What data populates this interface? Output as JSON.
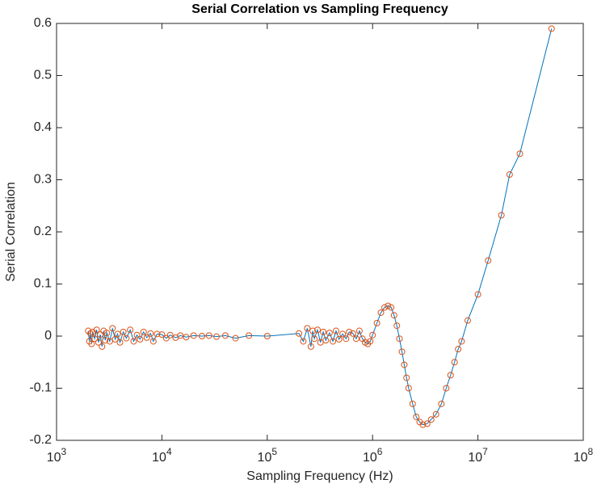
{
  "chart_data": {
    "type": "line",
    "title": "Serial Correlation vs Sampling Frequency",
    "x_label": "Sampling Frequency (Hz)",
    "y_label": "Serial Correlation",
    "x_scale": "log",
    "line_color": "#0072bd",
    "marker_color": "#d95319",
    "marker": "circle",
    "xlim": [
      1000,
      100000000
    ],
    "ylim": [
      -0.2,
      0.6
    ],
    "xticks": [
      {
        "value": 1000,
        "label": "10",
        "exponent": "3"
      },
      {
        "value": 10000,
        "label": "10",
        "exponent": "4"
      },
      {
        "value": 100000,
        "label": "10",
        "exponent": "5"
      },
      {
        "value": 1000000,
        "label": "10",
        "exponent": "6"
      },
      {
        "value": 10000000,
        "label": "10",
        "exponent": "7"
      },
      {
        "value": 100000000,
        "label": "10",
        "exponent": "8"
      }
    ],
    "yticks": [
      -0.2,
      -0.1,
      0,
      0.1,
      0.2,
      0.3,
      0.4,
      0.5,
      0.6
    ],
    "x": [
      2000,
      2050,
      2100,
      2150,
      2200,
      2300,
      2400,
      2500,
      2600,
      2700,
      2800,
      2900,
      3000,
      3200,
      3400,
      3600,
      3800,
      4000,
      4300,
      4600,
      5000,
      5400,
      5800,
      6200,
      6700,
      7200,
      7800,
      8300,
      9000,
      10000,
      11000,
      12000,
      13500,
      15000,
      17000,
      20000,
      24000,
      28000,
      33000,
      40000,
      50000,
      67000,
      100000,
      200000,
      220000,
      240000,
      260000,
      270000,
      280000,
      300000,
      320000,
      340000,
      360000,
      390000,
      420000,
      450000,
      480000,
      520000,
      560000,
      600000,
      650000,
      700000,
      750000,
      800000,
      850000,
      900000,
      950000,
      1000000,
      1100000,
      1200000,
      1300000,
      1400000,
      1500000,
      1600000,
      1700000,
      1800000,
      1900000,
      2000000,
      2100000,
      2200000,
      2400000,
      2600000,
      2800000,
      3000000,
      3300000,
      3600000,
      4000000,
      4500000,
      5000000,
      5500000,
      6000000,
      6500000,
      7000000,
      8000000,
      10000000,
      12500000,
      16700000,
      20000000,
      25000000,
      50000000
    ],
    "values": [
      0.01,
      -0.01,
      0.005,
      -0.015,
      0.008,
      -0.005,
      0.012,
      -0.012,
      0.003,
      -0.02,
      0.01,
      -0.008,
      0.006,
      -0.01,
      0.015,
      -0.006,
      0.004,
      -0.012,
      0.008,
      -0.004,
      0.012,
      -0.01,
      0.002,
      -0.006,
      0.008,
      -0.003,
      0.005,
      -0.01,
      0.004,
      0.003,
      -0.004,
      0.002,
      -0.003,
      0.001,
      -0.002,
      0.001,
      0,
      0.001,
      -0.001,
      0.001,
      -0.004,
      0.001,
      0,
      0.005,
      -0.01,
      0.015,
      -0.02,
      0.01,
      -0.005,
      0.012,
      -0.012,
      0.008,
      -0.008,
      0.006,
      -0.01,
      0.01,
      -0.006,
      0.004,
      -0.005,
      0.008,
      0.005,
      -0.005,
      0.01,
      -0.005,
      -0.012,
      -0.015,
      -0.01,
      0.002,
      0.025,
      0.045,
      0.055,
      0.058,
      0.055,
      0.04,
      0.02,
      -0.005,
      -0.03,
      -0.055,
      -0.08,
      -0.1,
      -0.13,
      -0.155,
      -0.165,
      -0.17,
      -0.168,
      -0.16,
      -0.15,
      -0.13,
      -0.1,
      -0.075,
      -0.05,
      -0.025,
      -0.01,
      0.03,
      0.08,
      0.145,
      0.232,
      0.31,
      0.35,
      0.59
    ]
  }
}
